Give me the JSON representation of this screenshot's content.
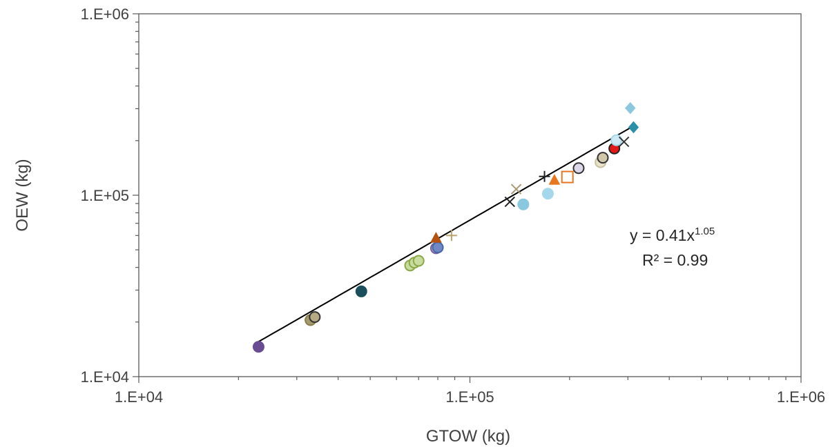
{
  "chart_data": {
    "type": "scatter",
    "xscale": "log",
    "yscale": "log",
    "xlim": [
      10000,
      1000000
    ],
    "ylim": [
      10000,
      1000000
    ],
    "xlabel": "GTOW (kg)",
    "ylabel": "OEW (kg)",
    "x_ticks": [
      10000,
      100000,
      1000000
    ],
    "x_tick_labels": [
      "1.E+04",
      "1.E+05",
      "1.E+06"
    ],
    "y_ticks": [
      10000,
      100000,
      1000000
    ],
    "y_tick_labels": [
      "1.E+04",
      "1.E+05",
      "1.E+06"
    ],
    "grid": false,
    "trendline": {
      "type": "power",
      "a": 0.41,
      "b": 1.05,
      "x_range": [
        23000,
        310000
      ],
      "color": "#000000",
      "equation_prefix": "y = 0.41x",
      "equation_exponent": "1.05",
      "r2_label": "R² = 0.99"
    },
    "points": [
      {
        "x": 23000,
        "y": 14600,
        "marker": "circle",
        "color": "#6a4c93",
        "fill": "#6a4c93"
      },
      {
        "x": 33000,
        "y": 20500,
        "marker": "circle",
        "color": "#8b7d4a",
        "fill": "#a39a6e"
      },
      {
        "x": 34000,
        "y": 21300,
        "marker": "circle",
        "color": "#333333",
        "fill": "#b5aa84"
      },
      {
        "x": 47000,
        "y": 29500,
        "marker": "circle",
        "color": "#1b4f5c",
        "fill": "#1b4f5c"
      },
      {
        "x": 66000,
        "y": 41000,
        "marker": "circle",
        "color": "#8aa848",
        "fill": "#c8dca0"
      },
      {
        "x": 68000,
        "y": 42500,
        "marker": "circle",
        "color": "#8aa848",
        "fill": "#c8dca0"
      },
      {
        "x": 70000,
        "y": 43500,
        "marker": "circle",
        "color": "#8aa848",
        "fill": "#c8dca0"
      },
      {
        "x": 79000,
        "y": 51000,
        "marker": "circle",
        "color": "#7a5c9a",
        "fill": "#c4b0dc"
      },
      {
        "x": 80000,
        "y": 51500,
        "marker": "circle",
        "color": "#4466aa",
        "fill": "#7088c4"
      },
      {
        "x": 79000,
        "y": 58000,
        "marker": "triangle",
        "color": "#b5520f",
        "fill": "#b5520f"
      },
      {
        "x": 88000,
        "y": 60000,
        "marker": "plus",
        "color": "#b8a36a",
        "fill": "none"
      },
      {
        "x": 132000,
        "y": 92000,
        "marker": "x",
        "color": "#222222",
        "fill": "none"
      },
      {
        "x": 138000,
        "y": 108000,
        "marker": "x",
        "color": "#a89a74",
        "fill": "none"
      },
      {
        "x": 145000,
        "y": 89000,
        "marker": "circle",
        "color": "#8ac8e0",
        "fill": "#8ac8e0"
      },
      {
        "x": 168000,
        "y": 127000,
        "marker": "plus",
        "color": "#222222",
        "fill": "none"
      },
      {
        "x": 172000,
        "y": 102000,
        "marker": "circle",
        "color": "#a6d8ec",
        "fill": "#a6d8ec"
      },
      {
        "x": 180000,
        "y": 121000,
        "marker": "triangle",
        "color": "#e8761e",
        "fill": "#e8761e"
      },
      {
        "x": 197000,
        "y": 126000,
        "marker": "square",
        "color": "#e8761e",
        "fill": "none"
      },
      {
        "x": 213000,
        "y": 141000,
        "marker": "circle",
        "color": "#333333",
        "fill": "#dcd8ea"
      },
      {
        "x": 248000,
        "y": 152000,
        "marker": "circle",
        "color": "#c8c0a0",
        "fill": "#e8e2c8"
      },
      {
        "x": 252000,
        "y": 161000,
        "marker": "circle",
        "color": "#333333",
        "fill": "#d0c8a8"
      },
      {
        "x": 273000,
        "y": 181000,
        "marker": "circle",
        "color": "#222222",
        "fill": "#e01818"
      },
      {
        "x": 277000,
        "y": 201000,
        "marker": "circle",
        "color": "#a6d8ec",
        "fill": "#cfeaf4"
      },
      {
        "x": 292000,
        "y": 197000,
        "marker": "x",
        "color": "#333333",
        "fill": "none"
      },
      {
        "x": 305000,
        "y": 302000,
        "marker": "diamond",
        "color": "#8ac8e0",
        "fill": "#8ac8e0"
      },
      {
        "x": 312000,
        "y": 237000,
        "marker": "diamond",
        "color": "#2b8fa8",
        "fill": "#2b8fa8"
      }
    ]
  }
}
